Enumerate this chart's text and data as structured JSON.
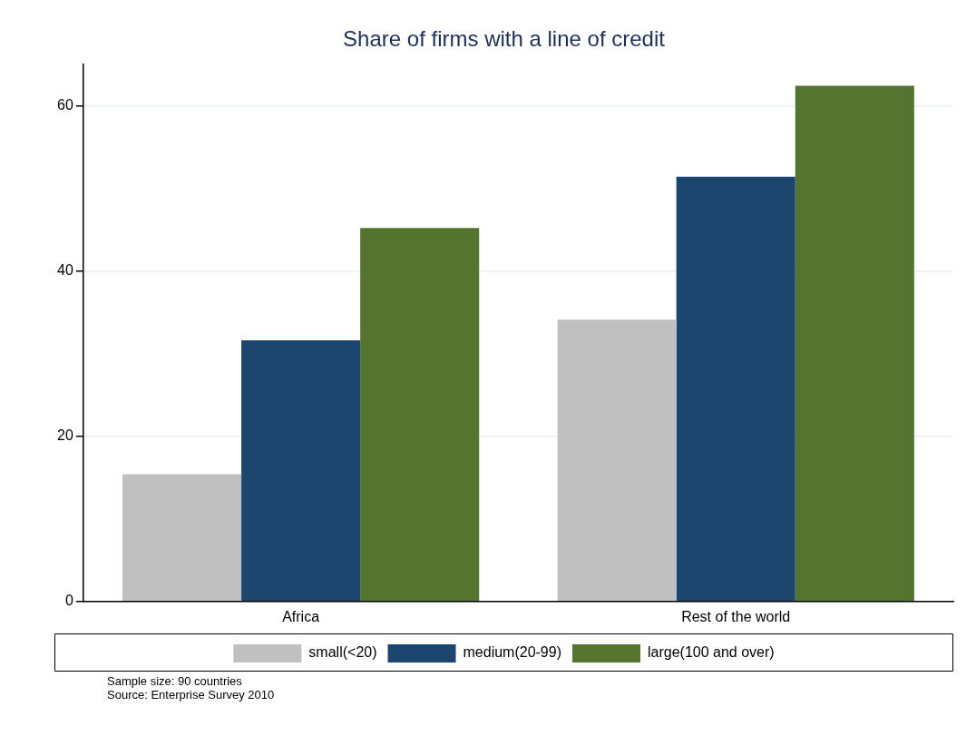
{
  "chart_data": {
    "type": "bar",
    "title": "Share of firms with a line of credit",
    "categories": [
      "Africa",
      "Rest of the world"
    ],
    "series": [
      {
        "name": "small(<20)",
        "color": "#c0c0c0",
        "values": [
          15.4,
          34.1
        ]
      },
      {
        "name": "medium(20-99)",
        "color": "#1c466e",
        "values": [
          31.6,
          51.4
        ]
      },
      {
        "name": "large(100 and over)",
        "color": "#55742f",
        "values": [
          45.2,
          62.4
        ]
      }
    ],
    "ylim": [
      0,
      65
    ],
    "yticks": [
      0,
      20,
      40,
      60
    ],
    "grid": "y",
    "legend": "bottom",
    "annotations": [
      "Sample size: 90 countries",
      "Source: Enterprise Survey 2010"
    ]
  }
}
